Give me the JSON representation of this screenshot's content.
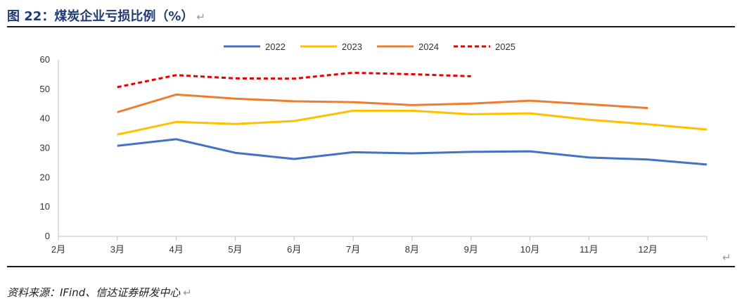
{
  "figure": {
    "title": "图 22：煤炭企业亏损比例（%）",
    "return_mark": "↵",
    "source": "资料来源：IFind、信达证券研发中心"
  },
  "colors": {
    "title": "#1f3b73",
    "axis": "#bfbfbf",
    "series": [
      "#4472c4",
      "#ffc000",
      "#ed7d31",
      "#e60000"
    ]
  },
  "chart_data": {
    "type": "line",
    "categories": [
      "2月",
      "3月",
      "4月",
      "5月",
      "6月",
      "7月",
      "8月",
      "9月",
      "10月",
      "11月",
      "12月",
      ""
    ],
    "ylim": [
      0,
      60
    ],
    "yticks": [
      0,
      10,
      20,
      30,
      40,
      50,
      60
    ],
    "grid": false,
    "legend_position": "top-center",
    "series": [
      {
        "name": "2022",
        "style": "solid",
        "values": [
          null,
          30.8,
          33.0,
          28.4,
          26.3,
          28.6,
          28.2,
          28.7,
          28.9,
          26.8,
          26.1,
          24.4
        ]
      },
      {
        "name": "2023",
        "style": "solid",
        "values": [
          null,
          34.6,
          38.9,
          38.2,
          39.2,
          42.7,
          42.7,
          41.5,
          41.8,
          39.6,
          38.1,
          36.3
        ]
      },
      {
        "name": "2024",
        "style": "solid",
        "values": [
          null,
          42.2,
          48.2,
          46.8,
          45.9,
          45.6,
          44.6,
          45.1,
          46.1,
          44.9,
          43.6,
          null
        ]
      },
      {
        "name": "2025",
        "style": "dashed",
        "values": [
          null,
          50.7,
          54.8,
          53.7,
          53.6,
          55.6,
          55.1,
          54.4,
          null,
          null,
          null,
          null
        ]
      }
    ]
  }
}
